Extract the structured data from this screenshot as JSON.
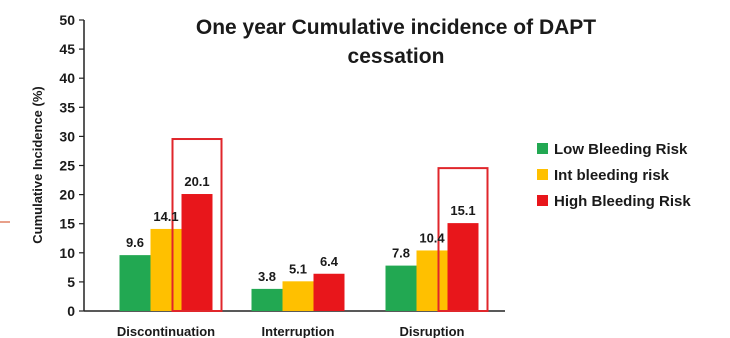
{
  "chart_data": {
    "type": "bar",
    "title_lines": [
      "One year Cumulative incidence of DAPT",
      "cessation"
    ],
    "xlabel": "",
    "ylabel": "Cumulative Incidence (%)",
    "ylim": [
      0,
      50
    ],
    "yticks": [
      0,
      5,
      10,
      15,
      20,
      25,
      30,
      35,
      40,
      45,
      50
    ],
    "grid": false,
    "legend_position": "right",
    "categories": [
      "Discontinuation",
      "Interruption",
      "Disruption"
    ],
    "series": [
      {
        "name": "Low Bleeding Risk",
        "color": "#22a852",
        "values": [
          9.6,
          3.8,
          7.8
        ]
      },
      {
        "name": "Int bleeding risk",
        "color": "#ffc000",
        "values": [
          14.1,
          5.1,
          10.4
        ]
      },
      {
        "name": "High Bleeding Risk",
        "color": "#e8161b",
        "values": [
          20.1,
          6.4,
          15.1
        ]
      }
    ],
    "highlight": {
      "color": "#e0262b",
      "points": [
        [
          0,
          2
        ],
        [
          2,
          2
        ]
      ]
    }
  }
}
